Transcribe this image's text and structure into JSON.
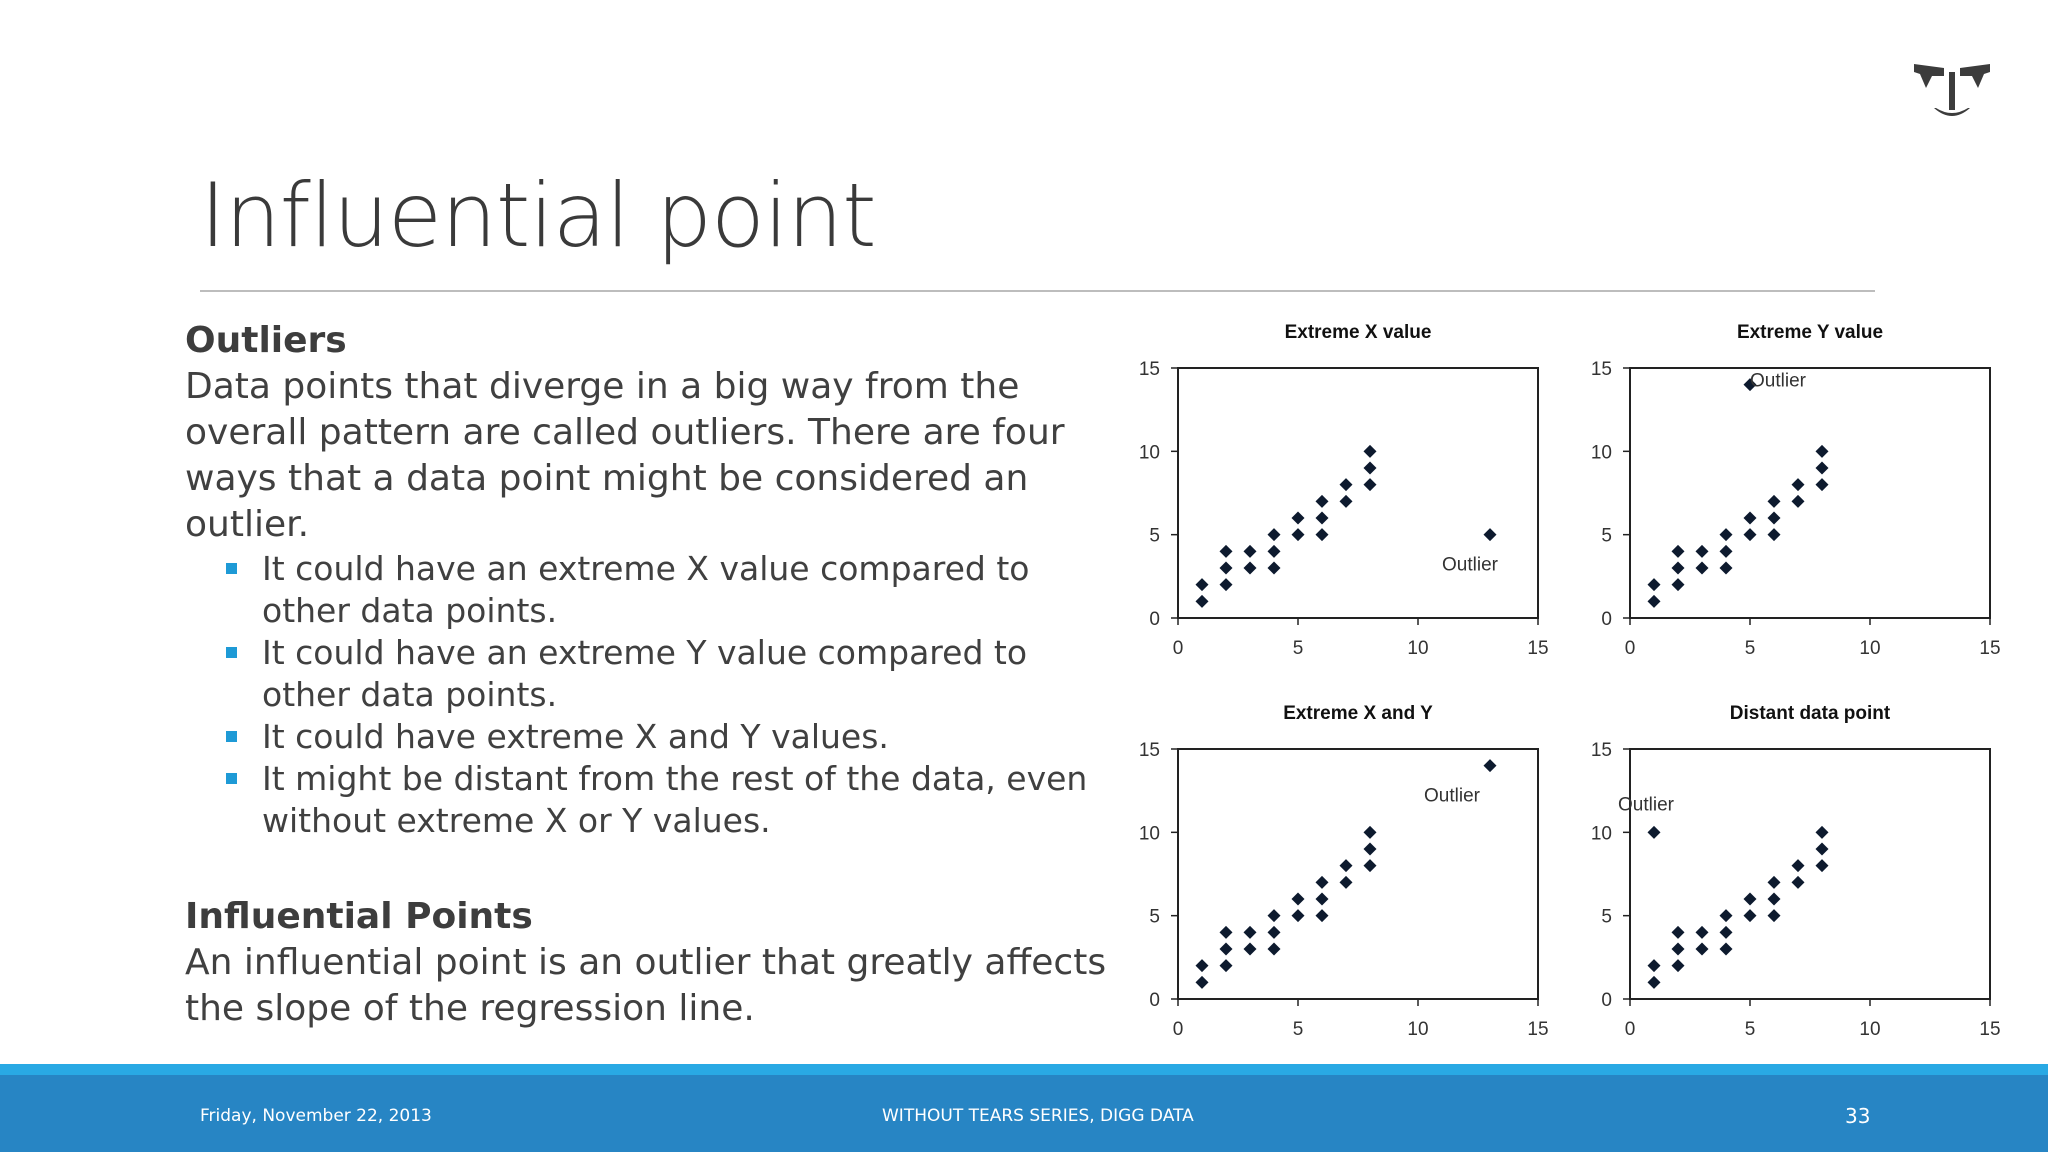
{
  "slide": {
    "title": "Influential point",
    "logo_icon": "anchor-logo-icon",
    "accent_color": "#1e9ad6",
    "footer_color": "#2785c4"
  },
  "content": {
    "outliers": {
      "heading": "Outliers",
      "text": "Data points that diverge in a big way from the overall pattern are called outliers. There are four ways that a data point might be considered an outlier.",
      "bullets": [
        "It could have an extreme X value compared to other data points.",
        "It could have an extreme Y value compared to other data points.",
        "It could have extreme X and Y values.",
        "It might be distant from the rest of the data, even without extreme X or Y values."
      ]
    },
    "influential": {
      "heading": "Influential Points",
      "text": "An influential point is an outlier that greatly affects the slope of the regression line."
    }
  },
  "footer": {
    "date": "Friday, November 22, 2013",
    "series": "WITHOUT TEARS SERIES, DIGG DATA",
    "page": "33"
  },
  "chart_data": [
    {
      "type": "scatter",
      "title": "Extreme X value",
      "xlim": [
        0,
        15
      ],
      "ylim": [
        0,
        15
      ],
      "xticks": [
        0,
        5,
        10,
        15
      ],
      "yticks": [
        0,
        5,
        10,
        15
      ],
      "grid": false,
      "points": [
        [
          1,
          1
        ],
        [
          1,
          2
        ],
        [
          2,
          2
        ],
        [
          2,
          3
        ],
        [
          2,
          4
        ],
        [
          3,
          3
        ],
        [
          3,
          4
        ],
        [
          4,
          3
        ],
        [
          4,
          4
        ],
        [
          4,
          5
        ],
        [
          5,
          5
        ],
        [
          5,
          6
        ],
        [
          6,
          5
        ],
        [
          6,
          6
        ],
        [
          6,
          7
        ],
        [
          7,
          7
        ],
        [
          7,
          8
        ],
        [
          8,
          8
        ],
        [
          8,
          9
        ],
        [
          8,
          10
        ],
        [
          13,
          5
        ]
      ],
      "outlier": {
        "x": 13,
        "y": 5,
        "label": "Outlier"
      }
    },
    {
      "type": "scatter",
      "title": "Extreme Y value",
      "xlim": [
        0,
        15
      ],
      "ylim": [
        0,
        15
      ],
      "xticks": [
        0,
        5,
        10,
        15
      ],
      "yticks": [
        0,
        5,
        10,
        15
      ],
      "grid": false,
      "points": [
        [
          1,
          1
        ],
        [
          1,
          2
        ],
        [
          2,
          2
        ],
        [
          2,
          3
        ],
        [
          2,
          4
        ],
        [
          3,
          3
        ],
        [
          3,
          4
        ],
        [
          4,
          3
        ],
        [
          4,
          4
        ],
        [
          4,
          5
        ],
        [
          5,
          5
        ],
        [
          5,
          6
        ],
        [
          6,
          5
        ],
        [
          6,
          6
        ],
        [
          6,
          7
        ],
        [
          7,
          7
        ],
        [
          7,
          8
        ],
        [
          8,
          8
        ],
        [
          8,
          9
        ],
        [
          8,
          10
        ],
        [
          5,
          14
        ]
      ],
      "outlier": {
        "x": 5,
        "y": 14,
        "label": "Outlier"
      }
    },
    {
      "type": "scatter",
      "title": "Extreme X and Y",
      "xlim": [
        0,
        15
      ],
      "ylim": [
        0,
        15
      ],
      "xticks": [
        0,
        5,
        10,
        15
      ],
      "yticks": [
        0,
        5,
        10,
        15
      ],
      "grid": false,
      "points": [
        [
          1,
          1
        ],
        [
          1,
          2
        ],
        [
          2,
          2
        ],
        [
          2,
          3
        ],
        [
          2,
          4
        ],
        [
          3,
          3
        ],
        [
          3,
          4
        ],
        [
          4,
          3
        ],
        [
          4,
          4
        ],
        [
          4,
          5
        ],
        [
          5,
          5
        ],
        [
          5,
          6
        ],
        [
          6,
          5
        ],
        [
          6,
          6
        ],
        [
          6,
          7
        ],
        [
          7,
          7
        ],
        [
          7,
          8
        ],
        [
          8,
          8
        ],
        [
          8,
          9
        ],
        [
          8,
          10
        ],
        [
          13,
          14
        ]
      ],
      "outlier": {
        "x": 13,
        "y": 14,
        "label": "Outlier"
      }
    },
    {
      "type": "scatter",
      "title": "Distant data point",
      "xlim": [
        0,
        15
      ],
      "ylim": [
        0,
        15
      ],
      "xticks": [
        0,
        5,
        10,
        15
      ],
      "yticks": [
        0,
        5,
        10,
        15
      ],
      "grid": false,
      "points": [
        [
          1,
          1
        ],
        [
          1,
          2
        ],
        [
          2,
          2
        ],
        [
          2,
          3
        ],
        [
          2,
          4
        ],
        [
          3,
          3
        ],
        [
          3,
          4
        ],
        [
          4,
          3
        ],
        [
          4,
          4
        ],
        [
          4,
          5
        ],
        [
          5,
          5
        ],
        [
          5,
          6
        ],
        [
          6,
          5
        ],
        [
          6,
          6
        ],
        [
          6,
          7
        ],
        [
          7,
          7
        ],
        [
          7,
          8
        ],
        [
          8,
          8
        ],
        [
          8,
          9
        ],
        [
          8,
          10
        ],
        [
          1,
          10
        ]
      ],
      "outlier": {
        "x": 1,
        "y": 10,
        "label": "Outlier"
      }
    }
  ]
}
